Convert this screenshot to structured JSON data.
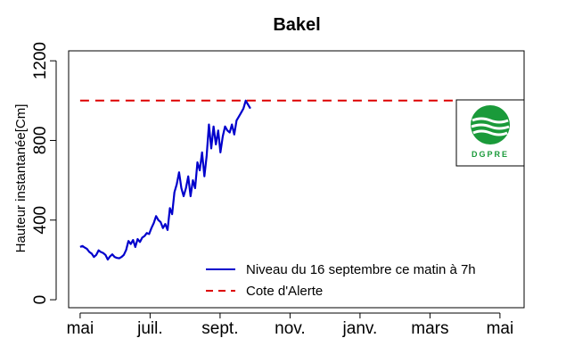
{
  "chart_data": {
    "type": "line",
    "title": "Bakel",
    "ylabel": "Hauteur instantanée[Cm]",
    "xlabel": "",
    "ylim": [
      -40,
      1250
    ],
    "yticks": [
      0,
      400,
      800,
      1200
    ],
    "x_ticks": [
      "mai",
      "juil.",
      "sept.",
      "nov.",
      "janv.",
      "mars",
      "mai"
    ],
    "xlim_days": [
      -10,
      386
    ],
    "grid": false,
    "legend_position": "bottom-right",
    "series": [
      {
        "name": "Niveau du 16 septembre ce matin à 7h",
        "color": "#0000cc",
        "style": "solid",
        "x_days": [
          0,
          2,
          4,
          6,
          8,
          10,
          12,
          14,
          16,
          18,
          20,
          22,
          24,
          26,
          28,
          30,
          32,
          34,
          36,
          38,
          40,
          42,
          44,
          46,
          48,
          50,
          52,
          54,
          56,
          58,
          60,
          62,
          64,
          66,
          68,
          70,
          72,
          74,
          76,
          78,
          80,
          82,
          84,
          86,
          88,
          90,
          92,
          94,
          96,
          98,
          100,
          102,
          104,
          106,
          108,
          110,
          112,
          114,
          116,
          118,
          120,
          122,
          124,
          126,
          128,
          130,
          132,
          134,
          136,
          138,
          140,
          142,
          144,
          146,
          148
        ],
        "values": [
          265,
          270,
          262,
          255,
          240,
          232,
          215,
          225,
          248,
          240,
          235,
          225,
          202,
          218,
          228,
          215,
          210,
          208,
          215,
          225,
          250,
          295,
          280,
          300,
          265,
          305,
          290,
          312,
          320,
          335,
          330,
          360,
          385,
          420,
          400,
          390,
          360,
          380,
          350,
          460,
          430,
          540,
          580,
          640,
          560,
          520,
          560,
          620,
          520,
          600,
          560,
          690,
          650,
          740,
          620,
          720,
          880,
          760,
          870,
          780,
          850,
          740,
          820,
          870,
          850,
          840,
          880,
          830,
          900,
          920,
          940,
          960,
          1000,
          980,
          960
        ]
      },
      {
        "name": "Cote d'Alerte",
        "color": "#dd0000",
        "style": "dashed",
        "x_days": [
          0,
          373
        ],
        "values": [
          1000,
          1000
        ]
      }
    ]
  },
  "logo": {
    "text": "DGPRE",
    "color": "#1a9a3a"
  }
}
